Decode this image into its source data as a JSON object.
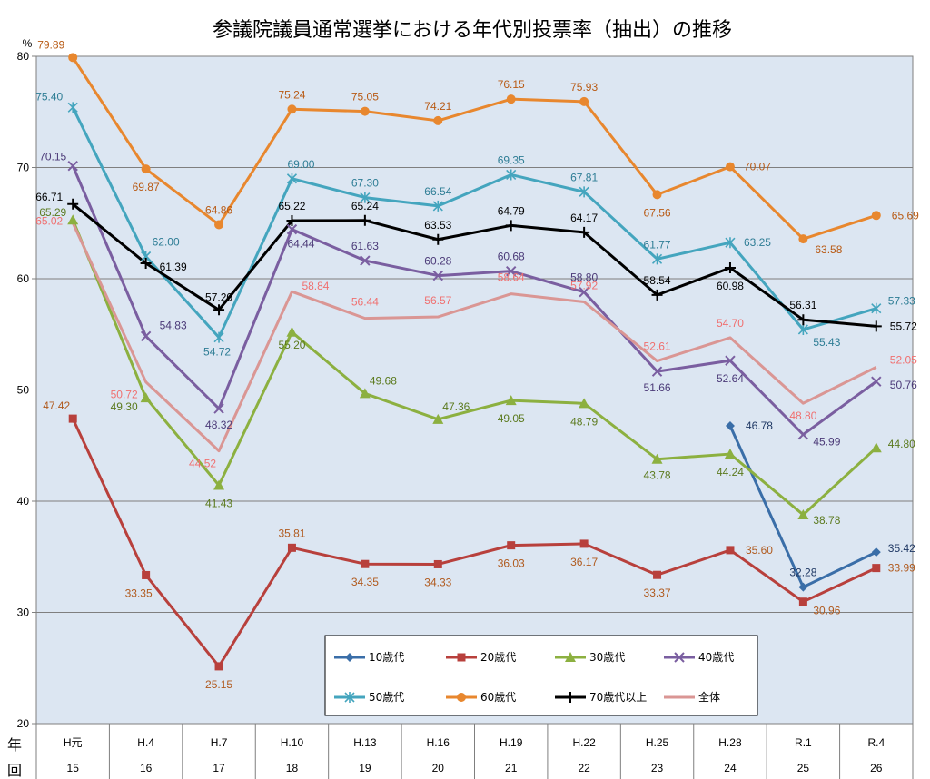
{
  "chart_data": {
    "type": "line",
    "title": "参議院議員通常選挙における年代別投票率（抽出）の推移",
    "ylabel": "%",
    "ylim": [
      20,
      80
    ],
    "yticks": [
      20,
      30,
      40,
      50,
      60,
      70,
      80
    ],
    "grid": true,
    "legend_position": "bottom-center",
    "row_labels": {
      "era": "年",
      "round": "回"
    },
    "categories": [
      "H元",
      "H.4",
      "H.7",
      "H.10",
      "H.13",
      "H.16",
      "H.19",
      "H.22",
      "H.25",
      "H.28",
      "R.1",
      "R.4"
    ],
    "rounds": [
      "15",
      "16",
      "17",
      "18",
      "19",
      "20",
      "21",
      "22",
      "23",
      "24",
      "25",
      "26"
    ],
    "series": [
      {
        "name": "10歳代",
        "color": "#3A6EA8",
        "label_color": "#1F3864",
        "marker": "diamond",
        "values": [
          null,
          null,
          null,
          null,
          null,
          null,
          null,
          null,
          null,
          46.78,
          32.28,
          35.42
        ],
        "labels": [
          null,
          null,
          null,
          null,
          null,
          null,
          null,
          null,
          null,
          "46.78",
          "32.28",
          "35.42"
        ]
      },
      {
        "name": "20歳代",
        "color": "#B8403C",
        "label_color": "#B05A1E",
        "marker": "square",
        "values": [
          47.42,
          33.35,
          25.15,
          35.81,
          34.35,
          34.33,
          36.03,
          36.17,
          33.37,
          35.6,
          30.96,
          33.99
        ],
        "labels": [
          "47.42",
          "33.35",
          "25.15",
          "35.81",
          "34.35",
          "34.33",
          "36.03",
          "36.17",
          "33.37",
          "35.60",
          "30.96",
          "33.99"
        ]
      },
      {
        "name": "30歳代",
        "color": "#8CB040",
        "label_color": "#5B7A1E",
        "marker": "triangle",
        "values": [
          65.29,
          49.3,
          41.43,
          55.2,
          49.68,
          47.36,
          49.05,
          48.79,
          43.78,
          44.24,
          38.78,
          44.8
        ],
        "labels": [
          "65.29",
          "49.30",
          "41.43",
          "55.20",
          "49.68",
          "47.36",
          "49.05",
          "48.79",
          "43.78",
          "44.24",
          "38.78",
          "44.80"
        ]
      },
      {
        "name": "40歳代",
        "color": "#7A5EA0",
        "label_color": "#4B3A78",
        "marker": "x",
        "values": [
          70.15,
          54.83,
          48.32,
          64.44,
          61.63,
          60.28,
          60.68,
          58.8,
          51.66,
          52.64,
          45.99,
          50.76
        ],
        "labels": [
          "70.15",
          "54.83",
          "48.32",
          "64.44",
          "61.63",
          "60.28",
          "60.68",
          "58.80",
          "51.66",
          "52.64",
          "45.99",
          "50.76"
        ]
      },
      {
        "name": "50歳代",
        "color": "#44A5BE",
        "label_color": "#2E7D95",
        "marker": "asterisk",
        "values": [
          75.4,
          62.0,
          54.72,
          69.0,
          67.3,
          66.54,
          69.35,
          67.81,
          61.77,
          63.25,
          55.43,
          57.33
        ],
        "labels": [
          "75.40",
          "62.00",
          "54.72",
          "69.00",
          "67.30",
          "66.54",
          "69.35",
          "67.81",
          "61.77",
          "63.25",
          "55.43",
          "57.33"
        ]
      },
      {
        "name": "60歳代",
        "color": "#E8872E",
        "label_color": "#B85A14",
        "marker": "circle",
        "values": [
          79.89,
          69.87,
          64.86,
          75.24,
          75.05,
          74.21,
          76.15,
          75.93,
          67.56,
          70.07,
          63.58,
          65.69
        ],
        "labels": [
          "79.89",
          "69.87",
          "64.86",
          "75.24",
          "75.05",
          "74.21",
          "76.15",
          "75.93",
          "67.56",
          "70.07",
          "63.58",
          "65.69"
        ]
      },
      {
        "name": "70歳代以上",
        "color": "#000000",
        "label_color": "#000000",
        "marker": "plus",
        "values": [
          66.71,
          61.39,
          57.2,
          65.22,
          65.24,
          63.53,
          64.79,
          64.17,
          58.54,
          60.98,
          56.31,
          55.72
        ],
        "labels": [
          "66.71",
          "61.39",
          "57.20",
          "65.22",
          "65.24",
          "63.53",
          "64.79",
          "64.17",
          "58.54",
          "60.98",
          "56.31",
          "55.72"
        ]
      },
      {
        "name": "全体",
        "color": "#DA9694",
        "label_color": "#F07070",
        "marker": "none",
        "values": [
          65.02,
          50.72,
          44.52,
          58.84,
          56.44,
          56.57,
          58.64,
          57.92,
          52.61,
          54.7,
          48.8,
          52.05
        ],
        "labels": [
          "65.02",
          "50.72",
          "44.52",
          "58.84",
          "56.44",
          "56.57",
          "58.64",
          "57.92",
          "52.61",
          "54.70",
          "48.80",
          "52.05"
        ]
      }
    ]
  }
}
